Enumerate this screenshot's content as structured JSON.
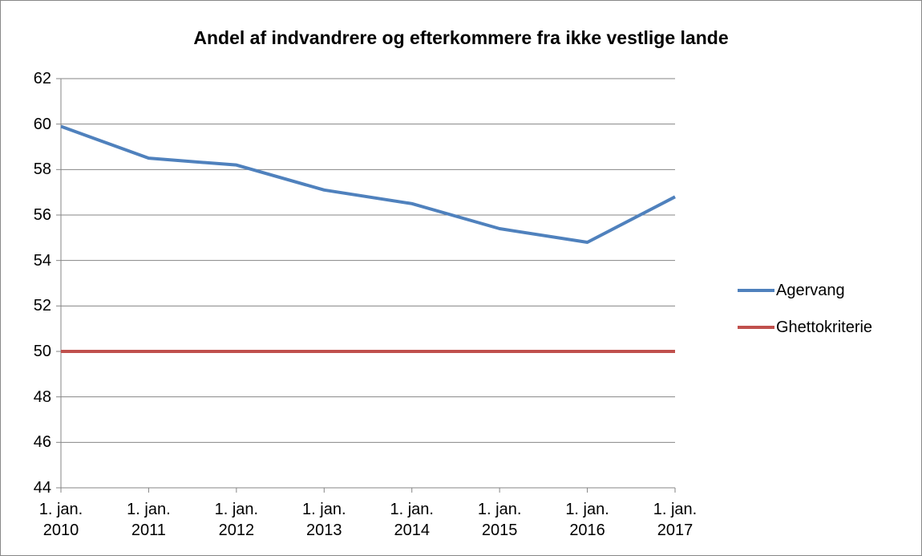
{
  "chart_data": {
    "type": "line",
    "title": "Andel af indvandrere og efterkommere fra ikke vestlige lande",
    "categories": [
      "1. jan.\n2010",
      "1. jan.\n2011",
      "1. jan.\n2012",
      "1. jan.\n2013",
      "1. jan.\n2014",
      "1. jan.\n2015",
      "1. jan.\n2016",
      "1. jan.\n2017"
    ],
    "series": [
      {
        "name": "Agervang",
        "color": "#4f81bd",
        "values": [
          59.9,
          58.5,
          58.2,
          57.1,
          56.5,
          55.4,
          54.8,
          56.8
        ]
      },
      {
        "name": "Ghettokriterie",
        "color": "#c0504d",
        "values": [
          50,
          50,
          50,
          50,
          50,
          50,
          50,
          50
        ]
      }
    ],
    "ylim": [
      44,
      62
    ],
    "yticks": [
      44,
      46,
      48,
      50,
      52,
      54,
      56,
      58,
      60,
      62
    ],
    "grid": true,
    "legend": "right"
  }
}
